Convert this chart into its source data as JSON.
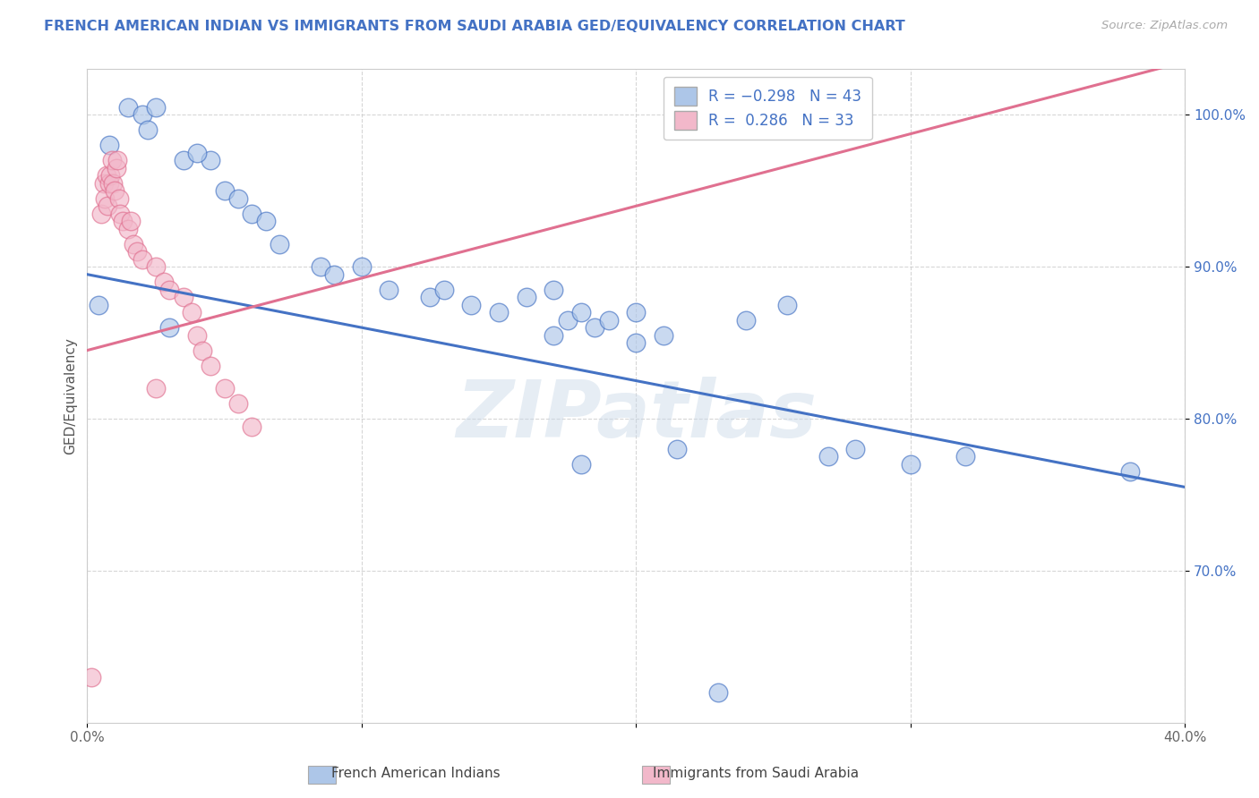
{
  "title": "FRENCH AMERICAN INDIAN VS IMMIGRANTS FROM SAUDI ARABIA GED/EQUIVALENCY CORRELATION CHART",
  "source": "Source: ZipAtlas.com",
  "ylabel": "GED/Equivalency",
  "legend_label1": "French American Indians",
  "legend_label2": "Immigrants from Saudi Arabia",
  "R1": -0.298,
  "N1": 43,
  "R2": 0.286,
  "N2": 33,
  "xlim": [
    0.0,
    40.0
  ],
  "ylim": [
    60.0,
    103.0
  ],
  "xticks": [
    0.0,
    10.0,
    20.0,
    30.0,
    40.0
  ],
  "xtick_labels": [
    "0.0%",
    "",
    "",
    "",
    "40.0%"
  ],
  "yticks": [
    70.0,
    80.0,
    90.0,
    100.0
  ],
  "ytick_labels": [
    "70.0%",
    "80.0%",
    "90.0%",
    "100.0%"
  ],
  "color_blue": "#adc6e8",
  "color_pink": "#f2b8ca",
  "line_blue": "#4472c4",
  "line_pink": "#e07090",
  "title_color": "#4472c4",
  "source_color": "#aaaaaa",
  "blue_scatter": [
    [
      0.8,
      98.0
    ],
    [
      1.5,
      100.5
    ],
    [
      2.0,
      100.0
    ],
    [
      2.2,
      99.0
    ],
    [
      2.5,
      100.5
    ],
    [
      3.5,
      97.0
    ],
    [
      4.5,
      97.0
    ],
    [
      4.0,
      97.5
    ],
    [
      5.0,
      95.0
    ],
    [
      5.5,
      94.5
    ],
    [
      6.0,
      93.5
    ],
    [
      6.5,
      93.0
    ],
    [
      7.0,
      91.5
    ],
    [
      8.5,
      90.0
    ],
    [
      9.0,
      89.5
    ],
    [
      10.0,
      90.0
    ],
    [
      11.0,
      88.5
    ],
    [
      12.5,
      88.0
    ],
    [
      13.0,
      88.5
    ],
    [
      14.0,
      87.5
    ],
    [
      15.0,
      87.0
    ],
    [
      16.0,
      88.0
    ],
    [
      17.0,
      88.5
    ],
    [
      17.5,
      86.5
    ],
    [
      18.0,
      87.0
    ],
    [
      18.5,
      86.0
    ],
    [
      19.0,
      86.5
    ],
    [
      20.0,
      87.0
    ],
    [
      21.0,
      85.5
    ],
    [
      24.0,
      86.5
    ],
    [
      25.5,
      87.5
    ],
    [
      17.0,
      85.5
    ],
    [
      20.0,
      85.0
    ],
    [
      28.0,
      78.0
    ],
    [
      30.0,
      77.0
    ],
    [
      32.0,
      77.5
    ],
    [
      38.0,
      76.5
    ],
    [
      21.5,
      78.0
    ],
    [
      27.0,
      77.5
    ],
    [
      18.0,
      77.0
    ],
    [
      23.0,
      62.0
    ],
    [
      0.4,
      87.5
    ],
    [
      3.0,
      86.0
    ]
  ],
  "pink_scatter": [
    [
      0.15,
      63.0
    ],
    [
      0.5,
      93.5
    ],
    [
      0.6,
      95.5
    ],
    [
      0.65,
      94.5
    ],
    [
      0.7,
      96.0
    ],
    [
      0.75,
      94.0
    ],
    [
      0.8,
      95.5
    ],
    [
      0.85,
      96.0
    ],
    [
      0.9,
      97.0
    ],
    [
      0.95,
      95.5
    ],
    [
      1.0,
      95.0
    ],
    [
      1.05,
      96.5
    ],
    [
      1.1,
      97.0
    ],
    [
      1.15,
      94.5
    ],
    [
      1.2,
      93.5
    ],
    [
      1.3,
      93.0
    ],
    [
      1.5,
      92.5
    ],
    [
      1.6,
      93.0
    ],
    [
      1.7,
      91.5
    ],
    [
      1.8,
      91.0
    ],
    [
      2.0,
      90.5
    ],
    [
      2.5,
      90.0
    ],
    [
      2.8,
      89.0
    ],
    [
      3.0,
      88.5
    ],
    [
      3.5,
      88.0
    ],
    [
      3.8,
      87.0
    ],
    [
      4.0,
      85.5
    ],
    [
      4.2,
      84.5
    ],
    [
      4.5,
      83.5
    ],
    [
      5.0,
      82.0
    ],
    [
      5.5,
      81.0
    ],
    [
      6.0,
      79.5
    ],
    [
      2.5,
      82.0
    ]
  ],
  "blue_trend_x": [
    0.0,
    40.0
  ],
  "blue_trend_y": [
    89.5,
    75.5
  ],
  "pink_trend_x": [
    0.0,
    40.0
  ],
  "pink_trend_y": [
    84.5,
    103.5
  ]
}
